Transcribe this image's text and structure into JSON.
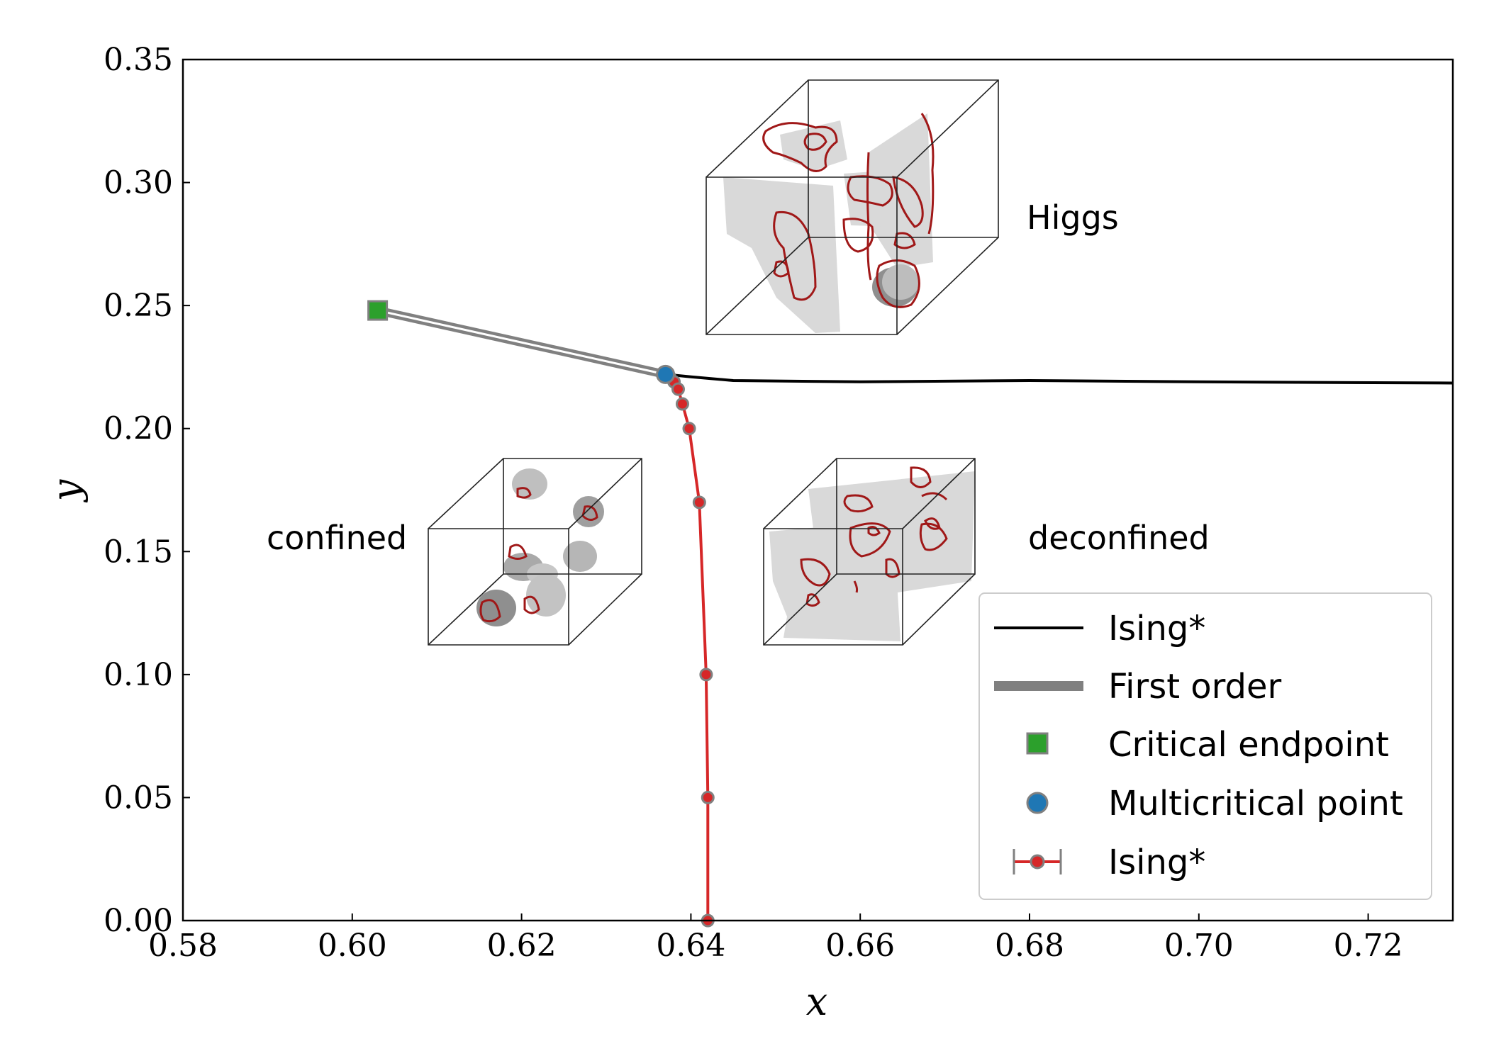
{
  "chart_data": {
    "type": "scatter",
    "title": "",
    "xlabel": "x",
    "ylabel": "y",
    "xlim": [
      0.58,
      0.73
    ],
    "ylim": [
      0.0,
      0.35
    ],
    "xticks": [
      "0.58",
      "0.60",
      "0.62",
      "0.64",
      "0.66",
      "0.68",
      "0.70",
      "0.72"
    ],
    "yticks": [
      "0.00",
      "0.05",
      "0.10",
      "0.15",
      "0.20",
      "0.25",
      "0.30",
      "0.35"
    ],
    "grid": false,
    "legend_position": "bottom-right",
    "series": [
      {
        "name": "Ising*",
        "kind": "line",
        "color": "#000000",
        "x": [
          0.637,
          0.64,
          0.645,
          0.66,
          0.68,
          0.7,
          0.73
        ],
        "y": [
          0.222,
          0.221,
          0.2195,
          0.219,
          0.2195,
          0.219,
          0.2185
        ]
      },
      {
        "name": "First order",
        "kind": "line",
        "color": "#808080",
        "x": [
          0.603,
          0.637
        ],
        "y": [
          0.248,
          0.222
        ]
      },
      {
        "name": "Critical endpoint",
        "kind": "marker",
        "marker": "square",
        "color": "#2ca02c",
        "x": [
          0.603
        ],
        "y": [
          0.248
        ]
      },
      {
        "name": "Multicritical point",
        "kind": "marker",
        "marker": "circle",
        "color": "#1f77b4",
        "x": [
          0.637
        ],
        "y": [
          0.222
        ]
      },
      {
        "name": "Ising*",
        "kind": "errorbar-line",
        "color": "#d62728",
        "x": [
          0.6375,
          0.638,
          0.6385,
          0.639,
          0.6398,
          0.641,
          0.6418,
          0.642,
          0.642
        ],
        "y": [
          0.221,
          0.219,
          0.216,
          0.21,
          0.2,
          0.17,
          0.1,
          0.05,
          0.0
        ]
      }
    ],
    "annotations": [
      {
        "text": "Higgs",
        "x": 0.6795,
        "y": 0.287
      },
      {
        "text": "confined",
        "x": 0.59,
        "y": 0.155
      },
      {
        "text": "deconfined",
        "x": 0.6795,
        "y": 0.155
      }
    ]
  },
  "legend": {
    "items": [
      {
        "label": "Ising*",
        "style": "black-line"
      },
      {
        "label": "First order",
        "style": "gray-line"
      },
      {
        "label": "Critical endpoint",
        "style": "green-square"
      },
      {
        "label": "Multicritical point",
        "style": "blue-circle"
      },
      {
        "label": "Ising*",
        "style": "red-errorbar"
      }
    ]
  },
  "colors": {
    "axis": "#000000",
    "ising_line": "#000000",
    "first_order": "#808080",
    "critical_endpoint": "#2ca02c",
    "multicritical": "#1f77b4",
    "ising_errorbar": "#d62728",
    "marker_edge": "#808080",
    "vortex_loop": "#a01818",
    "surface": "#d9d9d9"
  }
}
